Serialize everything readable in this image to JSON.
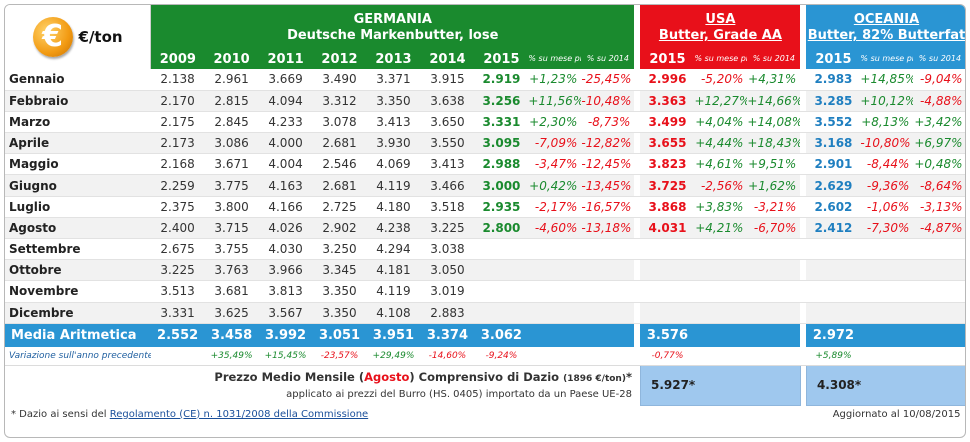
{
  "unit": "€/ton",
  "euro_symbol": "€",
  "regions": {
    "germany": {
      "name": "GERMANIA",
      "product": "Deutsche Markenbutter, lose"
    },
    "usa": {
      "name": "USA",
      "product": "Butter, Grade AA"
    },
    "oceania": {
      "name": "OCEANIA",
      "product": "Butter, 82% Butterfat"
    }
  },
  "years": [
    "2009",
    "2010",
    "2011",
    "2012",
    "2013",
    "2014",
    "2015"
  ],
  "pct_headers": {
    "month": "% su mese prec.",
    "year": "% su 2014"
  },
  "current_year": "2015",
  "months": [
    {
      "name": "Gennaio",
      "de": [
        "2.138",
        "2.961",
        "3.669",
        "3.490",
        "3.371",
        "3.915"
      ],
      "de2015": "2.919",
      "de_m": "+1,23%",
      "de_y": "-25,45%",
      "us2015": "2.996",
      "us_m": "-5,20%",
      "us_y": "+4,31%",
      "oc2015": "2.983",
      "oc_m": "+14,85%",
      "oc_y": "-9,04%"
    },
    {
      "name": "Febbraio",
      "de": [
        "2.170",
        "2.815",
        "4.094",
        "3.312",
        "3.350",
        "3.638"
      ],
      "de2015": "3.256",
      "de_m": "+11,56%",
      "de_y": "-10,48%",
      "us2015": "3.363",
      "us_m": "+12,27%",
      "us_y": "+14,66%",
      "oc2015": "3.285",
      "oc_m": "+10,12%",
      "oc_y": "-4,88%"
    },
    {
      "name": "Marzo",
      "de": [
        "2.175",
        "2.845",
        "4.233",
        "3.078",
        "3.413",
        "3.650"
      ],
      "de2015": "3.331",
      "de_m": "+2,30%",
      "de_y": "-8,73%",
      "us2015": "3.499",
      "us_m": "+4,04%",
      "us_y": "+14,08%",
      "oc2015": "3.552",
      "oc_m": "+8,13%",
      "oc_y": "+3,42%"
    },
    {
      "name": "Aprile",
      "de": [
        "2.173",
        "3.086",
        "4.000",
        "2.681",
        "3.930",
        "3.550"
      ],
      "de2015": "3.095",
      "de_m": "-7,09%",
      "de_y": "-12,82%",
      "us2015": "3.655",
      "us_m": "+4,44%",
      "us_y": "+18,43%",
      "oc2015": "3.168",
      "oc_m": "-10,80%",
      "oc_y": "+6,97%"
    },
    {
      "name": "Maggio",
      "de": [
        "2.168",
        "3.671",
        "4.004",
        "2.546",
        "4.069",
        "3.413"
      ],
      "de2015": "2.988",
      "de_m": "-3,47%",
      "de_y": "-12,45%",
      "us2015": "3.823",
      "us_m": "+4,61%",
      "us_y": "+9,51%",
      "oc2015": "2.901",
      "oc_m": "-8,44%",
      "oc_y": "+0,48%"
    },
    {
      "name": "Giugno",
      "de": [
        "2.259",
        "3.775",
        "4.163",
        "2.681",
        "4.119",
        "3.466"
      ],
      "de2015": "3.000",
      "de_m": "+0,42%",
      "de_y": "-13,45%",
      "us2015": "3.725",
      "us_m": "-2,56%",
      "us_y": "+1,62%",
      "oc2015": "2.629",
      "oc_m": "-9,36%",
      "oc_y": "-8,64%"
    },
    {
      "name": "Luglio",
      "de": [
        "2.375",
        "3.800",
        "4.166",
        "2.725",
        "4.180",
        "3.518"
      ],
      "de2015": "2.935",
      "de_m": "-2,17%",
      "de_y": "-16,57%",
      "us2015": "3.868",
      "us_m": "+3,83%",
      "us_y": "-3,21%",
      "oc2015": "2.602",
      "oc_m": "-1,06%",
      "oc_y": "-3,13%"
    },
    {
      "name": "Agosto",
      "de": [
        "2.400",
        "3.715",
        "4.026",
        "2.902",
        "4.238",
        "3.225"
      ],
      "de2015": "2.800",
      "de_m": "-4,60%",
      "de_y": "-13,18%",
      "us2015": "4.031",
      "us_m": "+4,21%",
      "us_y": "-6,70%",
      "oc2015": "2.412",
      "oc_m": "-7,30%",
      "oc_y": "-4,87%"
    },
    {
      "name": "Settembre",
      "de": [
        "2.675",
        "3.755",
        "4.030",
        "3.250",
        "4.294",
        "3.038"
      ],
      "de2015": "",
      "de_m": "",
      "de_y": "",
      "us2015": "",
      "us_m": "",
      "us_y": "",
      "oc2015": "",
      "oc_m": "",
      "oc_y": ""
    },
    {
      "name": "Ottobre",
      "de": [
        "3.225",
        "3.763",
        "3.966",
        "3.345",
        "4.181",
        "3.050"
      ],
      "de2015": "",
      "de_m": "",
      "de_y": "",
      "us2015": "",
      "us_m": "",
      "us_y": "",
      "oc2015": "",
      "oc_m": "",
      "oc_y": ""
    },
    {
      "name": "Novembre",
      "de": [
        "3.513",
        "3.681",
        "3.813",
        "3.350",
        "4.119",
        "3.019"
      ],
      "de2015": "",
      "de_m": "",
      "de_y": "",
      "us2015": "",
      "us_m": "",
      "us_y": "",
      "oc2015": "",
      "oc_m": "",
      "oc_y": ""
    },
    {
      "name": "Dicembre",
      "de": [
        "3.331",
        "3.625",
        "3.567",
        "3.350",
        "4.108",
        "2.883"
      ],
      "de2015": "",
      "de_m": "",
      "de_y": "",
      "us2015": "",
      "us_m": "",
      "us_y": "",
      "oc2015": "",
      "oc_m": "",
      "oc_y": ""
    }
  ],
  "average": {
    "label": "Media Aritmetica",
    "de": [
      "2.552",
      "3.458",
      "3.992",
      "3.051",
      "3.951",
      "3.374",
      "3.062"
    ],
    "us": "3.576",
    "oc": "2.972"
  },
  "variation": {
    "label": "Variazione sull'anno precedente",
    "de": [
      "",
      "+35,49%",
      "+15,45%",
      "-23,57%",
      "+29,49%",
      "-14,60%",
      "-9,24%"
    ],
    "us": "-0,77%",
    "oc": "+5,89%"
  },
  "dazio": {
    "title_prefix": "Prezzo Medio Mensile (",
    "month": "Agosto",
    "title_suffix": ") Comprensivo di Dazio ",
    "unit_note": "(1896 €/ton)",
    "star": "*",
    "line2": "applicato ai prezzi del Burro (HS. 0405) importato da un Paese UE-28",
    "usa_value": "5.927*",
    "oceania_value": "4.308*"
  },
  "footnote": {
    "prefix": "* Dazio ai sensi del ",
    "link": "Regolamento (CE) n. 1031/2008 della Commissione",
    "updated": "Aggiornato al 10/08/2015"
  },
  "colors": {
    "germany": "#1a8a2e",
    "usa": "#e8101a",
    "oceania": "#2a95d3",
    "positive": "#1a8a2e",
    "negative": "#e8101a"
  }
}
